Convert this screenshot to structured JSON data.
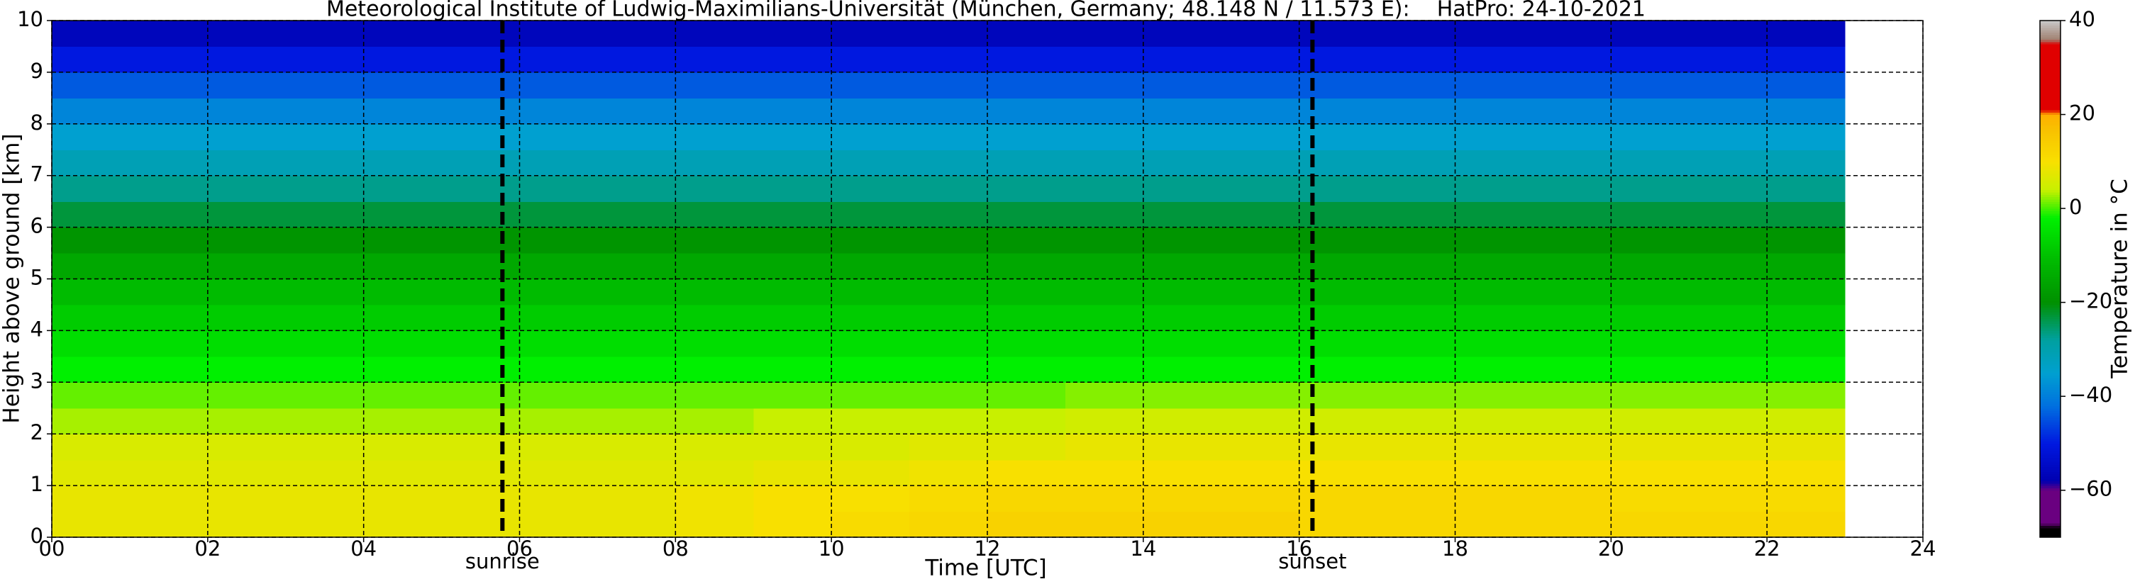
{
  "chart_data": {
    "type": "heatmap",
    "title": "Meteorological Institute of Ludwig-Maximilians-Universität (München, Germany; 48.148 N / 11.573 E):    HatPro: 24-10-2021",
    "x_label": "Time [UTC]",
    "y_label": "Height above ground [km]",
    "x": [
      0,
      1,
      2,
      3,
      4,
      5,
      6,
      7,
      8,
      9,
      10,
      11,
      12,
      13,
      14,
      15,
      16,
      17,
      18,
      19,
      20,
      21,
      22,
      23
    ],
    "y": [
      0,
      0.5,
      1,
      1.5,
      2,
      2.5,
      3,
      3.5,
      4,
      4.5,
      5,
      5.5,
      6,
      6.5,
      7,
      7.5,
      8,
      8.5,
      9,
      9.5,
      10
    ],
    "values": [
      [
        8,
        8,
        8,
        8,
        8,
        8,
        8,
        8,
        9,
        10,
        11,
        12,
        13,
        13,
        13,
        13,
        12,
        12,
        12,
        12,
        12,
        12,
        12
      ],
      [
        8,
        8,
        8,
        8,
        8,
        8,
        8,
        8,
        9,
        10,
        10,
        11,
        12,
        12,
        12,
        12,
        12,
        12,
        12,
        12,
        11,
        11,
        11
      ],
      [
        7,
        7,
        7,
        7,
        7,
        7,
        7,
        7,
        7,
        8,
        8,
        9,
        10,
        10,
        10,
        10,
        10,
        10,
        10,
        10,
        10,
        10,
        10
      ],
      [
        6,
        6,
        6,
        6,
        6,
        6,
        6,
        6,
        6,
        6,
        6,
        7,
        7,
        8,
        8,
        8,
        8,
        8,
        8,
        8,
        8,
        8,
        8
      ],
      [
        3,
        3,
        3,
        3,
        3,
        3,
        3,
        3,
        3,
        4,
        4,
        4,
        4,
        5,
        5,
        5,
        5,
        5,
        5,
        5,
        5,
        5,
        5
      ],
      [
        1,
        1,
        1,
        1,
        1,
        1,
        1,
        1,
        1,
        1,
        1,
        1,
        1,
        2,
        2,
        2,
        2,
        2,
        2,
        2,
        2,
        2,
        2
      ],
      [
        -2,
        -2,
        -2,
        -2,
        -2,
        -2,
        -2,
        -2,
        -2,
        -2,
        -2,
        -2,
        -2,
        -2,
        -2,
        -2,
        -2,
        -2,
        -2,
        -2,
        -2,
        -2,
        -2
      ],
      [
        -5,
        -5,
        -5,
        -5,
        -5,
        -5,
        -5,
        -5,
        -5,
        -5,
        -5,
        -5,
        -5,
        -5,
        -5,
        -5,
        -5,
        -5,
        -5,
        -5,
        -5,
        -5,
        -5
      ],
      [
        -8,
        -8,
        -8,
        -8,
        -8,
        -8,
        -8,
        -8,
        -8,
        -8,
        -8,
        -8,
        -8,
        -8,
        -8,
        -8,
        -8,
        -8,
        -8,
        -8,
        -8,
        -8,
        -8
      ],
      [
        -11,
        -11,
        -11,
        -11,
        -11,
        -11,
        -11,
        -11,
        -11,
        -11,
        -11,
        -11,
        -11,
        -11,
        -11,
        -11,
        -11,
        -11,
        -11,
        -11,
        -11,
        -11,
        -11
      ],
      [
        -15,
        -15,
        -15,
        -15,
        -15,
        -15,
        -15,
        -15,
        -15,
        -15,
        -15,
        -15,
        -15,
        -15,
        -15,
        -15,
        -15,
        -15,
        -15,
        -15,
        -15,
        -15,
        -15
      ],
      [
        -19,
        -19,
        -19,
        -19,
        -19,
        -19,
        -19,
        -19,
        -19,
        -19,
        -19,
        -19,
        -19,
        -19,
        -19,
        -19,
        -19,
        -19,
        -19,
        -19,
        -19,
        -19,
        -19
      ],
      [
        -23,
        -23,
        -23,
        -23,
        -23,
        -23,
        -23,
        -23,
        -23,
        -23,
        -23,
        -23,
        -23,
        -23,
        -23,
        -23,
        -23,
        -23,
        -23,
        -23,
        -23,
        -23,
        -23
      ],
      [
        -27,
        -27,
        -27,
        -27,
        -27,
        -27,
        -27,
        -27,
        -27,
        -27,
        -27,
        -27,
        -27,
        -27,
        -27,
        -27,
        -27,
        -27,
        -27,
        -27,
        -27,
        -27,
        -27
      ],
      [
        -31,
        -31,
        -31,
        -31,
        -31,
        -31,
        -31,
        -31,
        -31,
        -31,
        -31,
        -31,
        -31,
        -31,
        -31,
        -31,
        -31,
        -31,
        -31,
        -31,
        -31,
        -31,
        -31
      ],
      [
        -35,
        -35,
        -35,
        -35,
        -35,
        -35,
        -35,
        -35,
        -35,
        -35,
        -35,
        -35,
        -35,
        -35,
        -35,
        -35,
        -35,
        -35,
        -35,
        -35,
        -35,
        -35,
        -35
      ],
      [
        -39,
        -39,
        -39,
        -39,
        -39,
        -39,
        -39,
        -39,
        -39,
        -39,
        -39,
        -39,
        -39,
        -39,
        -39,
        -39,
        -39,
        -39,
        -39,
        -39,
        -39,
        -39,
        -39
      ],
      [
        -44,
        -44,
        -44,
        -44,
        -44,
        -44,
        -44,
        -44,
        -44,
        -44,
        -44,
        -44,
        -44,
        -44,
        -44,
        -44,
        -44,
        -44,
        -44,
        -44,
        -44,
        -44,
        -44
      ],
      [
        -50,
        -50,
        -50,
        -50,
        -50,
        -50,
        -50,
        -50,
        -50,
        -50,
        -50,
        -50,
        -50,
        -50,
        -50,
        -50,
        -50,
        -50,
        -50,
        -50,
        -50,
        -50,
        -50
      ],
      [
        -56,
        -56,
        -56,
        -56,
        -56,
        -56,
        -56,
        -56,
        -56,
        -56,
        -56,
        -56,
        -56,
        -56,
        -56,
        -56,
        -56,
        -56,
        -56,
        -56,
        -56,
        -56,
        -56
      ]
    ],
    "xlim": [
      0,
      24
    ],
    "ylim": [
      0,
      10
    ],
    "xticks": [
      {
        "value": 0,
        "label": "00"
      },
      {
        "value": 2,
        "label": "02"
      },
      {
        "value": 4,
        "label": "04"
      },
      {
        "value": 6,
        "label": "06"
      },
      {
        "value": 8,
        "label": "08"
      },
      10,
      12,
      14,
      16,
      18,
      20,
      22,
      24
    ],
    "yticks": [
      0,
      1,
      2,
      3,
      4,
      5,
      6,
      7,
      8,
      9,
      10
    ],
    "grid": true,
    "annotations": [
      {
        "text": "sunrise",
        "x": 5.78
      },
      {
        "text": "sunset",
        "x": 16.17
      }
    ],
    "colorbar": {
      "label": "Temperature in °C",
      "lim": [
        -70,
        40
      ],
      "ticks": [
        {
          "value": -60,
          "label": "−60"
        },
        {
          "value": -40,
          "label": "−40"
        },
        {
          "value": -20,
          "label": "−20"
        },
        0,
        20,
        40
      ],
      "colormap": [
        [
          -70,
          "#000000"
        ],
        [
          -68,
          "#000000"
        ],
        [
          -67,
          "#6a0080"
        ],
        [
          -60,
          "#6a0080"
        ],
        [
          -58,
          "#0000b0"
        ],
        [
          -50,
          "#0018e0"
        ],
        [
          -42,
          "#0070e0"
        ],
        [
          -35,
          "#00a0d0"
        ],
        [
          -28,
          "#00a0a0"
        ],
        [
          -20,
          "#009000"
        ],
        [
          -10,
          "#00c000"
        ],
        [
          -2,
          "#00f000"
        ],
        [
          4,
          "#c8f000"
        ],
        [
          10,
          "#f8e000"
        ],
        [
          17,
          "#f8c000"
        ],
        [
          20,
          "#ffb000"
        ],
        [
          21,
          "#e00000"
        ],
        [
          35,
          "#e00000"
        ],
        [
          36,
          "#a08070"
        ],
        [
          40,
          "#c8c8c8"
        ]
      ]
    }
  }
}
